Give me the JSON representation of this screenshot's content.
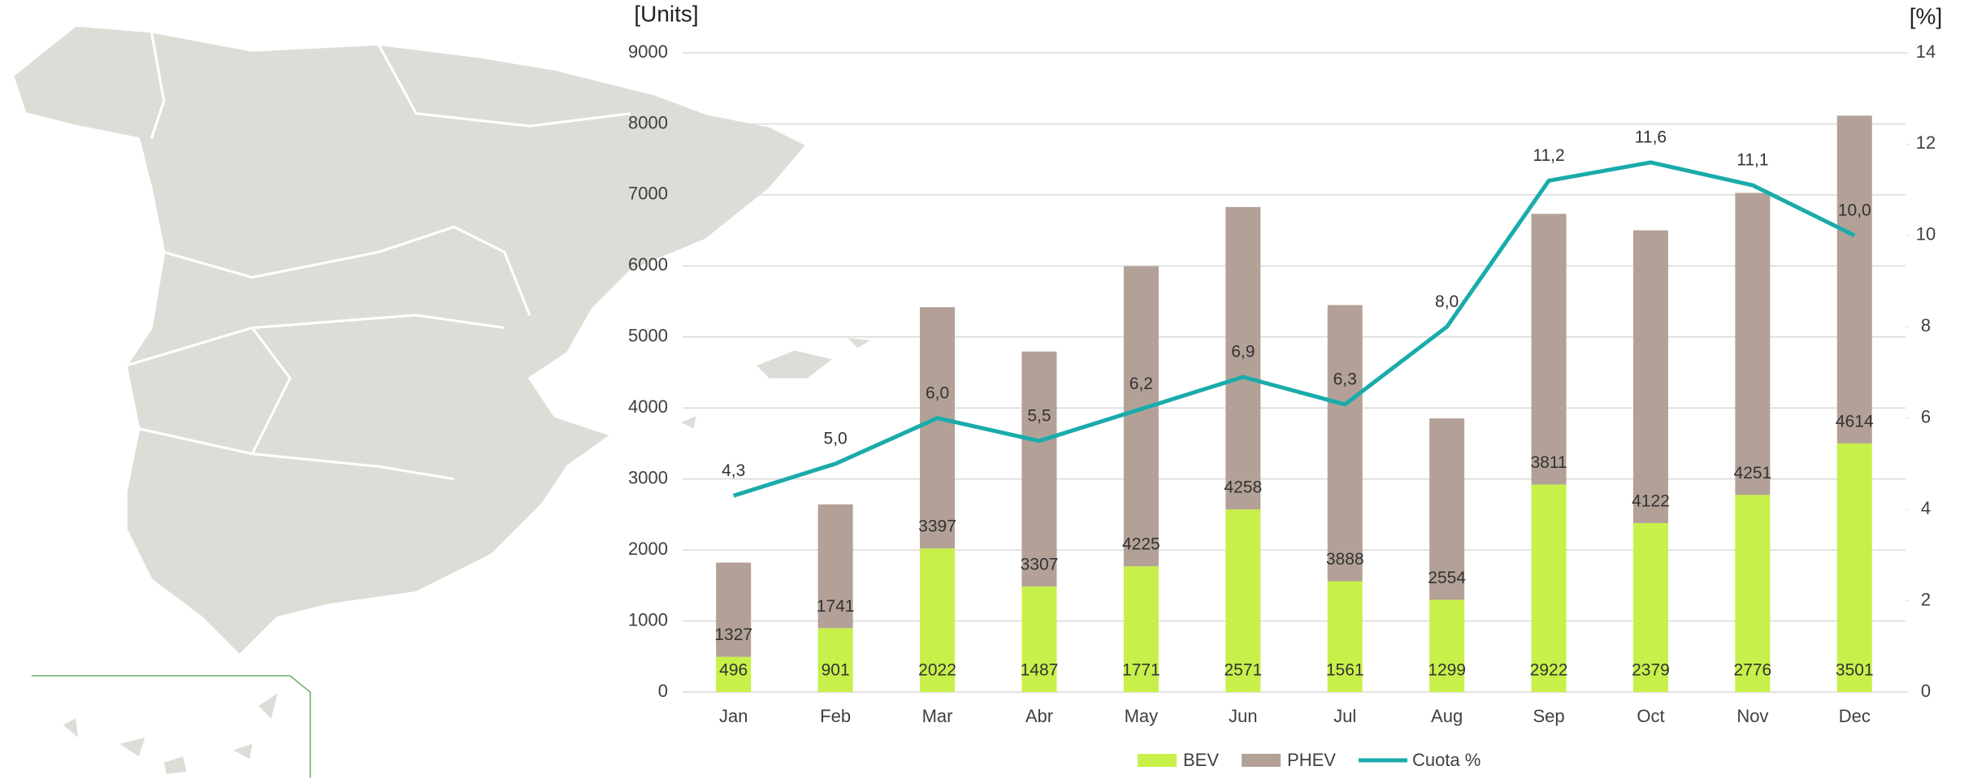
{
  "chart_data": {
    "type": "bar",
    "y_label": "[Units]",
    "y2_label": "[%]",
    "categories": [
      "Jan",
      "Feb",
      "Mar",
      "Abr",
      "May",
      "Jun",
      "Jul",
      "Aug",
      "Sep",
      "Oct",
      "Nov",
      "Dec"
    ],
    "series": [
      {
        "name": "BEV",
        "color": "#c8f04a",
        "values": [
          496,
          901,
          2022,
          1487,
          1771,
          2571,
          1561,
          1299,
          2922,
          2379,
          2776,
          3501
        ]
      },
      {
        "name": "PHEV",
        "color": "#b3a197",
        "values": [
          1327,
          1741,
          3397,
          3307,
          4225,
          4258,
          3888,
          2554,
          3811,
          4122,
          4251,
          4614
        ]
      },
      {
        "name": "Cuota %",
        "color": "#1aabab",
        "axis": "y2",
        "type": "line",
        "values": [
          4.3,
          5.0,
          6.0,
          5.5,
          6.2,
          6.9,
          6.3,
          8.0,
          11.2,
          11.6,
          11.1,
          10.0
        ],
        "value_labels": [
          "4,3",
          "5,0",
          "6,0",
          "5,5",
          "6,2",
          "6,9",
          "6,3",
          "8,0",
          "11,2",
          "11,6",
          "11,1",
          "10,0"
        ]
      }
    ],
    "stacked": true,
    "ylim": [
      0,
      9000
    ],
    "yticks": [
      0,
      1000,
      2000,
      3000,
      4000,
      5000,
      6000,
      7000,
      8000,
      9000
    ],
    "y2lim": [
      0,
      14
    ],
    "y2ticks": [
      0,
      2,
      4,
      6,
      8,
      10,
      12,
      14
    ],
    "grid": true,
    "legend": "bottom"
  }
}
